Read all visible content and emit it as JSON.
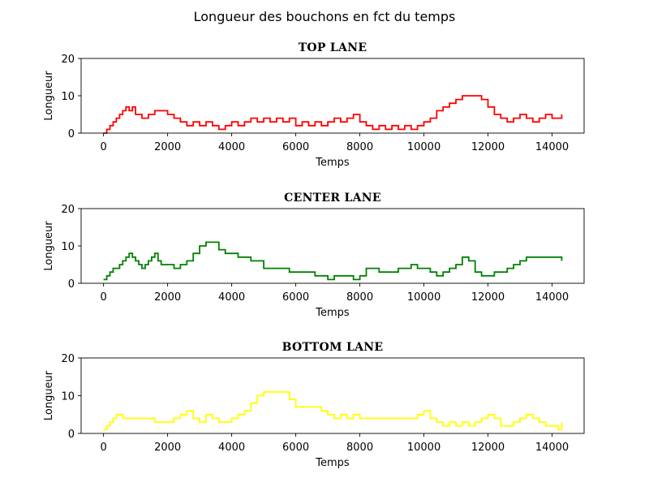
{
  "figure_title": "Longueur des bouchons en fct du temps",
  "chart_data": [
    {
      "type": "line",
      "title": "TOP LANE",
      "xlabel": "Temps",
      "ylabel": "Longueur",
      "xlim": [
        -700,
        15000
      ],
      "ylim": [
        0,
        20
      ],
      "xticks": [
        0,
        2000,
        4000,
        6000,
        8000,
        10000,
        12000,
        14000
      ],
      "yticks": [
        0,
        10,
        20
      ],
      "grid": false,
      "series": [
        {
          "color": "#ff0000",
          "x": [
            0,
            100,
            200,
            300,
            400,
            500,
            600,
            700,
            800,
            900,
            1000,
            1200,
            1400,
            1600,
            1800,
            2000,
            2200,
            2400,
            2600,
            2800,
            3000,
            3200,
            3400,
            3600,
            3800,
            4000,
            4200,
            4400,
            4600,
            4800,
            5000,
            5200,
            5400,
            5600,
            5800,
            6000,
            6200,
            6400,
            6600,
            6800,
            7000,
            7200,
            7400,
            7600,
            7800,
            8000,
            8200,
            8400,
            8600,
            8800,
            9000,
            9200,
            9400,
            9600,
            9800,
            10000,
            10200,
            10400,
            10600,
            10800,
            11000,
            11200,
            11400,
            11600,
            11800,
            12000,
            12200,
            12400,
            12600,
            12800,
            13000,
            13200,
            13400,
            13600,
            13800,
            14000,
            14200,
            14300
          ],
          "y": [
            0,
            1,
            2,
            3,
            4,
            5,
            6,
            7,
            6,
            7,
            5,
            4,
            5,
            6,
            6,
            5,
            4,
            3,
            2,
            3,
            2,
            3,
            2,
            1,
            2,
            3,
            2,
            3,
            4,
            3,
            4,
            3,
            4,
            3,
            4,
            2,
            3,
            2,
            3,
            2,
            3,
            4,
            3,
            4,
            5,
            3,
            2,
            1,
            2,
            1,
            2,
            1,
            2,
            1,
            2,
            3,
            4,
            6,
            7,
            8,
            9,
            10,
            10,
            10,
            9,
            7,
            5,
            4,
            3,
            4,
            5,
            4,
            3,
            4,
            5,
            4,
            4,
            5
          ]
        }
      ]
    },
    {
      "type": "line",
      "title": "CENTER LANE",
      "xlabel": "Temps",
      "ylabel": "Longueur",
      "xlim": [
        -700,
        15000
      ],
      "ylim": [
        0,
        20
      ],
      "xticks": [
        0,
        2000,
        4000,
        6000,
        8000,
        10000,
        12000,
        14000
      ],
      "yticks": [
        0,
        10,
        20
      ],
      "grid": false,
      "series": [
        {
          "color": "#008000",
          "x": [
            0,
            100,
            200,
            300,
            400,
            500,
            600,
            700,
            800,
            900,
            1000,
            1100,
            1200,
            1300,
            1400,
            1500,
            1600,
            1700,
            1800,
            2000,
            2200,
            2400,
            2600,
            2800,
            3000,
            3200,
            3400,
            3600,
            3800,
            4000,
            4200,
            4400,
            4600,
            4800,
            5000,
            5200,
            5400,
            5600,
            5800,
            6000,
            6200,
            6400,
            6600,
            6800,
            7000,
            7200,
            7400,
            7600,
            7800,
            8000,
            8200,
            8400,
            8600,
            8800,
            9000,
            9200,
            9400,
            9600,
            9800,
            10000,
            10200,
            10400,
            10600,
            10800,
            11000,
            11200,
            11400,
            11600,
            11800,
            12000,
            12200,
            12400,
            12600,
            12800,
            13000,
            13200,
            13400,
            13600,
            13800,
            14000,
            14200,
            14300
          ],
          "y": [
            1,
            2,
            3,
            4,
            4,
            5,
            6,
            7,
            8,
            7,
            6,
            5,
            4,
            5,
            6,
            7,
            8,
            6,
            5,
            5,
            4,
            5,
            6,
            8,
            10,
            11,
            11,
            9,
            8,
            8,
            7,
            7,
            6,
            6,
            4,
            4,
            4,
            4,
            3,
            3,
            3,
            3,
            2,
            2,
            1,
            2,
            2,
            2,
            1,
            2,
            4,
            4,
            3,
            3,
            3,
            4,
            4,
            5,
            4,
            4,
            3,
            2,
            3,
            4,
            5,
            7,
            6,
            3,
            2,
            2,
            3,
            3,
            4,
            5,
            6,
            7,
            7,
            7,
            7,
            7,
            7,
            6
          ]
        }
      ]
    },
    {
      "type": "line",
      "title": "BOTTOM LANE",
      "xlabel": "Temps",
      "ylabel": "Longueur",
      "xlim": [
        -700,
        15000
      ],
      "ylim": [
        0,
        20
      ],
      "xticks": [
        0,
        2000,
        4000,
        6000,
        8000,
        10000,
        12000,
        14000
      ],
      "yticks": [
        0,
        10,
        20
      ],
      "grid": false,
      "series": [
        {
          "color": "#ffff00",
          "x": [
            0,
            100,
            200,
            300,
            400,
            500,
            600,
            800,
            1000,
            1200,
            1400,
            1600,
            1800,
            2000,
            2200,
            2400,
            2600,
            2800,
            3000,
            3200,
            3400,
            3600,
            3800,
            4000,
            4200,
            4400,
            4600,
            4800,
            5000,
            5200,
            5400,
            5600,
            5800,
            6000,
            6200,
            6400,
            6600,
            6800,
            7000,
            7200,
            7400,
            7600,
            7800,
            8000,
            8200,
            8400,
            8600,
            8800,
            9000,
            9200,
            9400,
            9600,
            9800,
            10000,
            10200,
            10400,
            10600,
            10800,
            11000,
            11200,
            11400,
            11600,
            11800,
            12000,
            12200,
            12400,
            12600,
            12800,
            13000,
            13200,
            13400,
            13600,
            13800,
            14000,
            14200,
            14300
          ],
          "y": [
            1,
            2,
            3,
            4,
            5,
            5,
            4,
            4,
            4,
            4,
            4,
            3,
            3,
            3,
            4,
            5,
            6,
            4,
            3,
            5,
            4,
            3,
            3,
            4,
            5,
            6,
            8,
            10,
            11,
            11,
            11,
            11,
            9,
            7,
            7,
            7,
            7,
            6,
            5,
            4,
            5,
            4,
            5,
            4,
            4,
            4,
            4,
            4,
            4,
            4,
            4,
            4,
            5,
            6,
            4,
            3,
            2,
            3,
            2,
            3,
            2,
            3,
            4,
            5,
            4,
            2,
            2,
            3,
            4,
            5,
            4,
            3,
            2,
            2,
            1,
            3
          ]
        }
      ]
    }
  ]
}
